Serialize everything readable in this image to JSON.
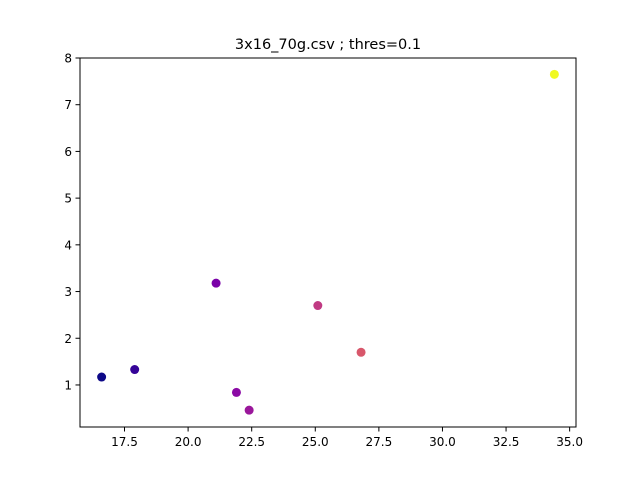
{
  "chart_data": {
    "type": "scatter",
    "title": "3x16_70g.csv ; thres=0.1",
    "xlabel": "",
    "ylabel": "",
    "xlim": [
      15.75,
      35.25
    ],
    "ylim": [
      0.1,
      8.0
    ],
    "x_ticks": [
      17.5,
      20.0,
      22.5,
      25.0,
      27.5,
      30.0,
      32.5,
      35.0
    ],
    "x_tick_labels": [
      "17.5",
      "20.0",
      "22.5",
      "25.0",
      "27.5",
      "30.0",
      "32.5",
      "35.0"
    ],
    "y_ticks": [
      1,
      2,
      3,
      4,
      5,
      6,
      7,
      8
    ],
    "y_tick_labels": [
      "1",
      "2",
      "3",
      "4",
      "5",
      "6",
      "7",
      "8"
    ],
    "grid": false,
    "legend": "none",
    "points": [
      {
        "x": 16.6,
        "y": 1.17,
        "color": "#0d0887"
      },
      {
        "x": 17.9,
        "y": 1.33,
        "color": "#350498"
      },
      {
        "x": 21.1,
        "y": 3.18,
        "color": "#7a02a8"
      },
      {
        "x": 21.9,
        "y": 0.84,
        "color": "#8b0aa5"
      },
      {
        "x": 22.4,
        "y": 0.46,
        "color": "#9a179b"
      },
      {
        "x": 25.1,
        "y": 2.7,
        "color": "#c03a83"
      },
      {
        "x": 26.8,
        "y": 1.7,
        "color": "#d8576b"
      },
      {
        "x": 34.4,
        "y": 7.65,
        "color": "#f0f921"
      }
    ]
  }
}
